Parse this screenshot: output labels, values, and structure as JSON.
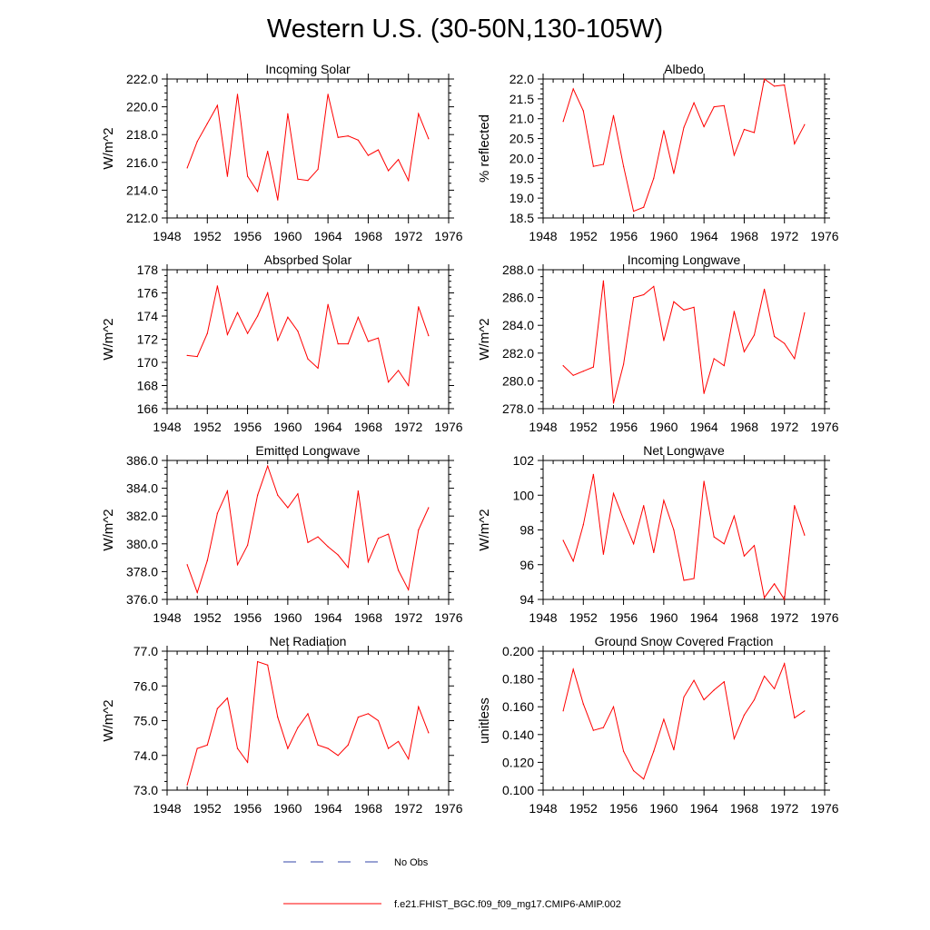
{
  "figure_title": "Western U.S. (30-50N,130-105W)",
  "colors": {
    "model_line": "#ff0000",
    "obs_line": "#3344aa",
    "axis": "#000000"
  },
  "legend": [
    {
      "label": "No Obs",
      "style": "dashed",
      "color": "#3344aa"
    },
    {
      "label": "f.e21.FHIST_BGC.f09_f09_mg17.CMIP6-AMIP.002",
      "style": "solid",
      "color": "#ff0000"
    }
  ],
  "chart_data": [
    {
      "id": "incoming-solar",
      "type": "line",
      "title": "Incoming Solar",
      "ylabel": "W/m^2",
      "xlim": [
        1948,
        1976
      ],
      "x_ticks": [
        1948,
        1952,
        1956,
        1960,
        1964,
        1968,
        1972,
        1976
      ],
      "x_tick_labels": [
        "1948",
        "1952",
        "1956",
        "1960",
        "1964",
        "1968",
        "1972",
        "1976"
      ],
      "ylim": [
        212,
        222
      ],
      "y_ticks": [
        212,
        214,
        216,
        218,
        220,
        222
      ],
      "y_tick_labels": [
        "212.0",
        "214.0",
        "216.0",
        "218.0",
        "220.0",
        "222.0"
      ],
      "x": [
        1950,
        1951,
        1952,
        1953,
        1954,
        1955,
        1956,
        1957,
        1958,
        1959,
        1960,
        1961,
        1962,
        1963,
        1964,
        1965,
        1966,
        1967,
        1968,
        1969,
        1970,
        1971,
        1972,
        1973,
        1974
      ],
      "series": [
        {
          "name": "f.e21.FHIST_BGC.f09_f09_mg17.CMIP6-AMIP.002",
          "values": [
            215.6,
            217.5,
            218.8,
            220.1,
            215.0,
            220.9,
            215.0,
            213.9,
            216.8,
            213.3,
            219.5,
            214.8,
            214.7,
            215.5,
            220.9,
            217.8,
            217.9,
            217.6,
            216.5,
            216.9,
            215.4,
            216.2,
            214.7,
            219.5,
            217.7
          ]
        }
      ]
    },
    {
      "id": "albedo",
      "type": "line",
      "title": "Albedo",
      "ylabel": "% reflected",
      "xlim": [
        1948,
        1976
      ],
      "x_ticks": [
        1948,
        1952,
        1956,
        1960,
        1964,
        1968,
        1972,
        1976
      ],
      "x_tick_labels": [
        "1948",
        "1952",
        "1956",
        "1960",
        "1964",
        "1968",
        "1972",
        "1976"
      ],
      "ylim": [
        18.5,
        22.0
      ],
      "y_ticks": [
        18.5,
        19.0,
        19.5,
        20.0,
        20.5,
        21.0,
        21.5,
        22.0
      ],
      "y_tick_labels": [
        "18.5",
        "19.0",
        "19.5",
        "20.0",
        "20.5",
        "21.0",
        "21.5",
        "22.0"
      ],
      "x": [
        1950,
        1951,
        1952,
        1953,
        1954,
        1955,
        1956,
        1957,
        1958,
        1959,
        1960,
        1961,
        1962,
        1963,
        1964,
        1965,
        1966,
        1967,
        1968,
        1969,
        1970,
        1971,
        1972,
        1973,
        1974
      ],
      "series": [
        {
          "name": "f.e21.FHIST_BGC.f09_f09_mg17.CMIP6-AMIP.002",
          "values": [
            20.93,
            21.75,
            21.2,
            19.8,
            19.85,
            21.08,
            19.8,
            18.67,
            18.77,
            19.5,
            20.7,
            19.62,
            20.78,
            21.4,
            20.8,
            21.3,
            21.33,
            20.08,
            20.73,
            20.65,
            22.0,
            21.82,
            21.85,
            20.37,
            20.85
          ]
        }
      ]
    },
    {
      "id": "absorbed-solar",
      "type": "line",
      "title": "Absorbed Solar",
      "ylabel": "W/m^2",
      "xlim": [
        1948,
        1976
      ],
      "x_ticks": [
        1948,
        1952,
        1956,
        1960,
        1964,
        1968,
        1972,
        1976
      ],
      "x_tick_labels": [
        "1948",
        "1952",
        "1956",
        "1960",
        "1964",
        "1968",
        "1972",
        "1976"
      ],
      "ylim": [
        166,
        178
      ],
      "y_ticks": [
        166,
        168,
        170,
        172,
        174,
        176,
        178
      ],
      "y_tick_labels": [
        "166",
        "168",
        "170",
        "172",
        "174",
        "176",
        "178"
      ],
      "x": [
        1950,
        1951,
        1952,
        1953,
        1954,
        1955,
        1956,
        1957,
        1958,
        1959,
        1960,
        1961,
        1962,
        1963,
        1964,
        1965,
        1966,
        1967,
        1968,
        1969,
        1970,
        1971,
        1972,
        1973,
        1974
      ],
      "series": [
        {
          "name": "f.e21.FHIST_BGC.f09_f09_mg17.CMIP6-AMIP.002",
          "values": [
            170.6,
            170.5,
            172.5,
            176.6,
            172.4,
            174.3,
            172.5,
            174.0,
            176.0,
            171.9,
            173.9,
            172.7,
            170.3,
            169.5,
            175.0,
            171.6,
            171.6,
            173.9,
            171.8,
            172.1,
            168.3,
            169.3,
            168.0,
            174.8,
            172.3
          ]
        }
      ]
    },
    {
      "id": "incoming-longwave",
      "type": "line",
      "title": "Incoming Longwave",
      "ylabel": "W/m^2",
      "xlim": [
        1948,
        1976
      ],
      "x_ticks": [
        1948,
        1952,
        1956,
        1960,
        1964,
        1968,
        1972,
        1976
      ],
      "x_tick_labels": [
        "1948",
        "1952",
        "1956",
        "1960",
        "1964",
        "1968",
        "1972",
        "1976"
      ],
      "ylim": [
        278,
        288
      ],
      "y_ticks": [
        278,
        280,
        282,
        284,
        286,
        288
      ],
      "y_tick_labels": [
        "278.0",
        "280.0",
        "282.0",
        "284.0",
        "286.0",
        "288.0"
      ],
      "x": [
        1950,
        1951,
        1952,
        1953,
        1954,
        1955,
        1956,
        1957,
        1958,
        1959,
        1960,
        1961,
        1962,
        1963,
        1964,
        1965,
        1966,
        1967,
        1968,
        1969,
        1970,
        1971,
        1972,
        1973,
        1974
      ],
      "series": [
        {
          "name": "f.e21.FHIST_BGC.f09_f09_mg17.CMIP6-AMIP.002",
          "values": [
            281.1,
            280.4,
            280.7,
            281.0,
            287.2,
            278.4,
            281.2,
            286.0,
            286.2,
            286.8,
            282.9,
            285.7,
            285.1,
            285.3,
            279.1,
            281.6,
            281.1,
            285.0,
            282.1,
            283.3,
            286.6,
            283.2,
            282.7,
            281.6,
            284.9
          ]
        }
      ]
    },
    {
      "id": "emitted-longwave",
      "type": "line",
      "title": "Emitted Longwave",
      "ylabel": "W/m^2",
      "xlim": [
        1948,
        1976
      ],
      "x_ticks": [
        1948,
        1952,
        1956,
        1960,
        1964,
        1968,
        1972,
        1976
      ],
      "x_tick_labels": [
        "1948",
        "1952",
        "1956",
        "1960",
        "1964",
        "1968",
        "1972",
        "1976"
      ],
      "ylim": [
        376,
        386
      ],
      "y_ticks": [
        376,
        378,
        380,
        382,
        384,
        386
      ],
      "y_tick_labels": [
        "376.0",
        "378.0",
        "380.0",
        "382.0",
        "384.0",
        "386.0"
      ],
      "x": [
        1950,
        1951,
        1952,
        1953,
        1954,
        1955,
        1956,
        1957,
        1958,
        1959,
        1960,
        1961,
        1962,
        1963,
        1964,
        1965,
        1966,
        1967,
        1968,
        1969,
        1970,
        1971,
        1972,
        1973,
        1974
      ],
      "series": [
        {
          "name": "f.e21.FHIST_BGC.f09_f09_mg17.CMIP6-AMIP.002",
          "values": [
            378.5,
            376.5,
            378.8,
            382.2,
            383.8,
            378.5,
            379.9,
            383.5,
            385.6,
            383.5,
            382.6,
            383.6,
            380.1,
            380.5,
            379.8,
            379.2,
            378.3,
            383.8,
            378.7,
            380.4,
            380.7,
            378.1,
            376.7,
            381.0,
            382.6
          ]
        }
      ]
    },
    {
      "id": "net-longwave",
      "type": "line",
      "title": "Net Longwave",
      "ylabel": "W/m^2",
      "xlim": [
        1948,
        1976
      ],
      "x_ticks": [
        1948,
        1952,
        1956,
        1960,
        1964,
        1968,
        1972,
        1976
      ],
      "x_tick_labels": [
        "1948",
        "1952",
        "1956",
        "1960",
        "1964",
        "1968",
        "1972",
        "1976"
      ],
      "ylim": [
        94,
        102
      ],
      "y_ticks": [
        94,
        96,
        98,
        100,
        102
      ],
      "y_tick_labels": [
        "94",
        "96",
        "98",
        "100",
        "102"
      ],
      "x": [
        1950,
        1951,
        1952,
        1953,
        1954,
        1955,
        1956,
        1957,
        1958,
        1959,
        1960,
        1961,
        1962,
        1963,
        1964,
        1965,
        1966,
        1967,
        1968,
        1969,
        1970,
        1971,
        1972,
        1973,
        1974
      ],
      "series": [
        {
          "name": "f.e21.FHIST_BGC.f09_f09_mg17.CMIP6-AMIP.002",
          "values": [
            97.4,
            96.2,
            98.3,
            101.2,
            96.6,
            100.1,
            98.6,
            97.2,
            99.4,
            96.7,
            99.7,
            98.0,
            95.1,
            95.2,
            100.8,
            97.6,
            97.2,
            98.8,
            96.5,
            97.1,
            94.1,
            94.9,
            94.0,
            99.4,
            97.7
          ]
        }
      ]
    },
    {
      "id": "net-radiation",
      "type": "line",
      "title": "Net Radiation",
      "ylabel": "W/m^2",
      "xlim": [
        1948,
        1976
      ],
      "x_ticks": [
        1948,
        1952,
        1956,
        1960,
        1964,
        1968,
        1972,
        1976
      ],
      "x_tick_labels": [
        "1948",
        "1952",
        "1956",
        "1960",
        "1964",
        "1968",
        "1972",
        "1976"
      ],
      "ylim": [
        73,
        77
      ],
      "y_ticks": [
        73,
        74,
        75,
        76,
        77
      ],
      "y_tick_labels": [
        "73.0",
        "74.0",
        "75.0",
        "76.0",
        "77.0"
      ],
      "x": [
        1950,
        1951,
        1952,
        1953,
        1954,
        1955,
        1956,
        1957,
        1958,
        1959,
        1960,
        1961,
        1962,
        1963,
        1964,
        1965,
        1966,
        1967,
        1968,
        1969,
        1970,
        1971,
        1972,
        1973,
        1974
      ],
      "series": [
        {
          "name": "f.e21.FHIST_BGC.f09_f09_mg17.CMIP6-AMIP.002",
          "values": [
            73.15,
            74.2,
            74.3,
            75.35,
            75.65,
            74.2,
            73.8,
            76.7,
            76.6,
            75.1,
            74.2,
            74.8,
            75.2,
            74.3,
            74.2,
            74.0,
            74.3,
            75.1,
            75.2,
            75.0,
            74.2,
            74.4,
            73.9,
            75.4,
            74.65
          ]
        }
      ]
    },
    {
      "id": "ground-snow-covered-fraction",
      "type": "line",
      "title": "Ground Snow Covered Fraction",
      "ylabel": "unitless",
      "xlim": [
        1948,
        1976
      ],
      "x_ticks": [
        1948,
        1952,
        1956,
        1960,
        1964,
        1968,
        1972,
        1976
      ],
      "x_tick_labels": [
        "1948",
        "1952",
        "1956",
        "1960",
        "1964",
        "1968",
        "1972",
        "1976"
      ],
      "ylim": [
        0.1,
        0.2
      ],
      "y_ticks": [
        0.1,
        0.12,
        0.14,
        0.16,
        0.18,
        0.2
      ],
      "y_tick_labels": [
        "0.100",
        "0.120",
        "0.140",
        "0.160",
        "0.180",
        "0.200"
      ],
      "x": [
        1950,
        1951,
        1952,
        1953,
        1954,
        1955,
        1956,
        1957,
        1958,
        1959,
        1960,
        1961,
        1962,
        1963,
        1964,
        1965,
        1966,
        1967,
        1968,
        1969,
        1970,
        1971,
        1972,
        1973,
        1974
      ],
      "series": [
        {
          "name": "f.e21.FHIST_BGC.f09_f09_mg17.CMIP6-AMIP.002",
          "values": [
            0.157,
            0.187,
            0.162,
            0.143,
            0.145,
            0.16,
            0.128,
            0.114,
            0.108,
            0.128,
            0.151,
            0.129,
            0.167,
            0.179,
            0.165,
            0.172,
            0.178,
            0.137,
            0.154,
            0.165,
            0.182,
            0.173,
            0.191,
            0.152,
            0.157
          ]
        }
      ]
    }
  ]
}
